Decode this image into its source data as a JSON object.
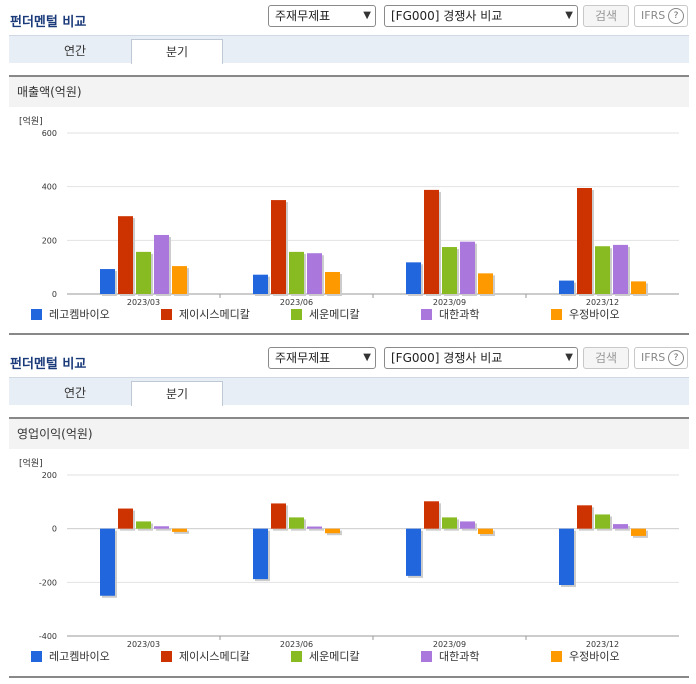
{
  "header": {
    "title": "펀더멘털 비교",
    "select1": "주재무제표",
    "select2": "[FG000] 경쟁사 비교",
    "search_label": "검색",
    "ifrs_label": "IFRS",
    "help_label": "?"
  },
  "tabs": [
    "연간",
    "분기"
  ],
  "active_tab": 1,
  "colors": {
    "series": [
      "#2266dd",
      "#cc3300",
      "#88bb22",
      "#aa77dd",
      "#ff9900"
    ]
  },
  "chart_data": [
    {
      "type": "bar",
      "title": "매출액(억원)",
      "ylabel": "[억원]",
      "ylim": [
        0,
        600
      ],
      "yticks": [
        0,
        200,
        400,
        600
      ],
      "categories": [
        "2023/03",
        "2023/06",
        "2023/09",
        "2023/12"
      ],
      "series": [
        {
          "name": "레고켐바이오",
          "values": [
            93,
            72,
            118,
            50
          ]
        },
        {
          "name": "제이시스메디칼",
          "values": [
            290,
            350,
            388,
            395
          ]
        },
        {
          "name": "세운메디칼",
          "values": [
            157,
            157,
            175,
            178
          ]
        },
        {
          "name": "대한과학",
          "values": [
            220,
            152,
            195,
            183
          ]
        },
        {
          "name": "우정바이오",
          "values": [
            104,
            82,
            77,
            47
          ]
        }
      ]
    },
    {
      "type": "bar",
      "title": "영업이익(억원)",
      "ylabel": "[억원]",
      "ylim": [
        -400,
        200
      ],
      "yticks": [
        -400,
        -200,
        0,
        200
      ],
      "categories": [
        "2023/03",
        "2023/06",
        "2023/09",
        "2023/12"
      ],
      "series": [
        {
          "name": "레고켐바이오",
          "values": [
            -250,
            -188,
            -176,
            -210
          ]
        },
        {
          "name": "제이시스메디칼",
          "values": [
            75,
            94,
            102,
            87
          ]
        },
        {
          "name": "세운메디칼",
          "values": [
            27,
            42,
            42,
            53
          ]
        },
        {
          "name": "대한과학",
          "values": [
            9,
            8,
            27,
            17
          ]
        },
        {
          "name": "우정바이오",
          "values": [
            -12,
            -17,
            -20,
            -27
          ]
        }
      ]
    }
  ]
}
